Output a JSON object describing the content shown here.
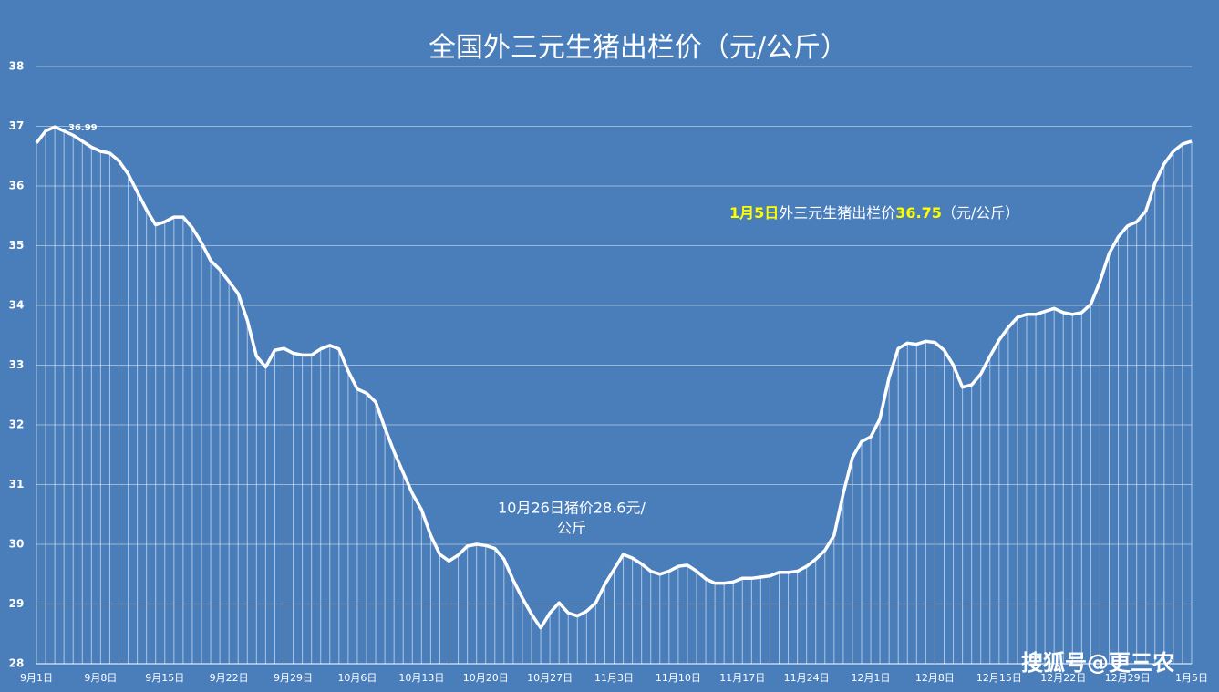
{
  "chart_data": {
    "type": "line",
    "title": "全国外三元生猪出栏价（元/公斤）",
    "categories": [
      "9月1日",
      null,
      null,
      null,
      null,
      null,
      null,
      "9月8日",
      null,
      null,
      null,
      null,
      null,
      null,
      "9月15日",
      null,
      null,
      null,
      null,
      null,
      null,
      "9月22日",
      null,
      null,
      null,
      null,
      null,
      null,
      "9月29日",
      null,
      null,
      null,
      null,
      null,
      null,
      "10月6日",
      null,
      null,
      null,
      null,
      null,
      null,
      "10月13日",
      null,
      null,
      null,
      null,
      null,
      null,
      "10月20日",
      null,
      null,
      null,
      null,
      null,
      null,
      "10月27日",
      null,
      null,
      null,
      null,
      null,
      null,
      "11月3日",
      null,
      null,
      null,
      null,
      null,
      null,
      "11月10日",
      null,
      null,
      null,
      null,
      null,
      null,
      "11月17日",
      null,
      null,
      null,
      null,
      null,
      null,
      "11月24日",
      null,
      null,
      null,
      null,
      null,
      null,
      "12月1日",
      null,
      null,
      null,
      null,
      null,
      null,
      "12月8日",
      null,
      null,
      null,
      null,
      null,
      null,
      "12月15日",
      null,
      null,
      null,
      null,
      null,
      null,
      "12月22日",
      null,
      null,
      null,
      null,
      null,
      null,
      "12月29日",
      null,
      null,
      null,
      null,
      null,
      null,
      "1月5日"
    ],
    "series": [
      {
        "name": "外三元生猪出栏价",
        "color": "#ffffff",
        "values": [
          36.72,
          36.92,
          36.99,
          36.92,
          36.85,
          36.75,
          36.65,
          36.58,
          36.55,
          36.42,
          36.2,
          35.9,
          35.6,
          35.35,
          35.4,
          35.48,
          35.48,
          35.3,
          35.05,
          34.75,
          34.6,
          34.4,
          34.2,
          33.75,
          33.15,
          32.97,
          33.25,
          33.28,
          33.2,
          33.17,
          33.17,
          33.27,
          33.33,
          33.27,
          32.9,
          32.6,
          32.53,
          32.38,
          31.95,
          31.55,
          31.2,
          30.85,
          30.58,
          30.15,
          29.83,
          29.72,
          29.82,
          29.97,
          30.0,
          29.98,
          29.93,
          29.75,
          29.4,
          29.1,
          28.83,
          28.6,
          28.85,
          29.02,
          28.85,
          28.8,
          28.88,
          29.02,
          29.33,
          29.58,
          29.83,
          29.77,
          29.67,
          29.55,
          29.5,
          29.55,
          29.63,
          29.65,
          29.55,
          29.42,
          29.35,
          29.35,
          29.37,
          29.43,
          29.43,
          29.45,
          29.47,
          29.53,
          29.53,
          29.55,
          29.63,
          29.75,
          29.9,
          30.15,
          30.85,
          31.45,
          31.72,
          31.8,
          32.1,
          32.8,
          33.28,
          33.37,
          33.35,
          33.4,
          33.38,
          33.25,
          33.0,
          32.63,
          32.67,
          32.85,
          33.15,
          33.42,
          33.63,
          33.8,
          33.85,
          33.85,
          33.9,
          33.95,
          33.88,
          33.85,
          33.88,
          34.02,
          34.4,
          34.87,
          35.15,
          35.33,
          35.4,
          35.58,
          36.05,
          36.37,
          36.58,
          36.7,
          36.75
        ]
      }
    ],
    "ylim": [
      28,
      38
    ],
    "yticks": [
      28,
      29,
      30,
      31,
      32,
      33,
      34,
      35,
      36,
      37,
      38
    ],
    "grid": true,
    "annotations": [
      {
        "lines": [
          "36.99"
        ]
      },
      {
        "lines": [
          "10月26日猪价28.6元/",
          "公斤"
        ]
      },
      {
        "parts": [
          {
            "text": "1月5日",
            "color": "#ffff00"
          },
          {
            "text": "外三元生猪出栏价",
            "color": "#ffffff"
          },
          {
            "text": "36.75",
            "color": "#ffff00"
          },
          {
            "text": "（元/公斤）",
            "color": "#ffffff"
          }
        ]
      }
    ],
    "watermark": "搜狐号@更三农"
  }
}
